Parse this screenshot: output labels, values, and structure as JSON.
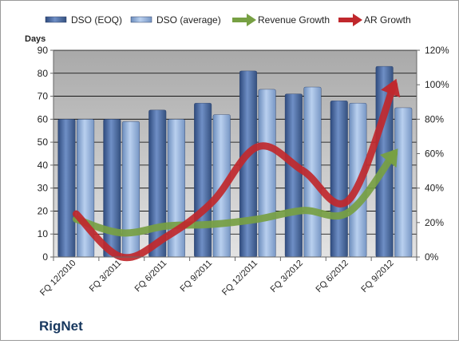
{
  "company": "RigNet",
  "chart_data": {
    "type": "bar",
    "categories": [
      "FQ 12/2010",
      "FQ 3/2011",
      "FQ 6/2011",
      "FQ 9/2011",
      "FQ 12/2011",
      "FQ 3/2012",
      "FQ 6/2012",
      "FQ 9/2012"
    ],
    "ylabel": "Days",
    "ylim": [
      0,
      90
    ],
    "yticks": [
      "0",
      "10",
      "20",
      "30",
      "40",
      "50",
      "60",
      "70",
      "80",
      "90"
    ],
    "y2lim": [
      0,
      1.2
    ],
    "y2ticks": [
      "0%",
      "20%",
      "40%",
      "60%",
      "80%",
      "100%",
      "120%"
    ],
    "grid": true,
    "legend_position": "top",
    "series": [
      {
        "name": "DSO (EOQ)",
        "type": "bar",
        "axis": "left",
        "color": "#4f6fa8",
        "values": [
          60,
          60,
          64,
          67,
          81,
          71,
          68,
          83
        ]
      },
      {
        "name": "DSO (average)",
        "type": "bar",
        "axis": "left",
        "color": "#8fb1dc",
        "values": [
          60,
          59,
          60,
          62,
          73,
          74,
          67,
          65
        ]
      },
      {
        "name": "Revenue Growth",
        "type": "line",
        "axis": "right",
        "color": "#77a043",
        "values": [
          0.22,
          0.14,
          0.18,
          0.19,
          0.22,
          0.27,
          0.26,
          0.6
        ]
      },
      {
        "name": "AR Growth",
        "type": "line",
        "axis": "right",
        "color": "#c0282d",
        "values": [
          0.25,
          0.0,
          0.12,
          0.32,
          0.64,
          0.5,
          0.33,
          1.0
        ]
      }
    ]
  }
}
